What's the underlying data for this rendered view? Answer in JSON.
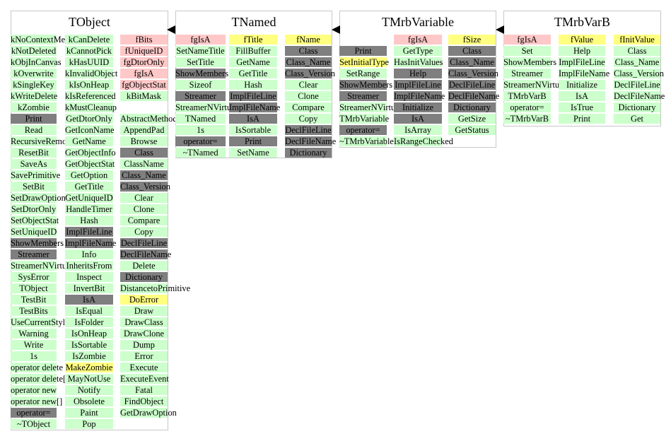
{
  "classes": [
    {
      "name": "TObject",
      "columns": [
        [
          [
            "kNoContextMenu",
            "green"
          ],
          [
            "kNotDeleted",
            "green"
          ],
          [
            "kObjInCanvas",
            "green"
          ],
          [
            "kOverwrite",
            "green"
          ],
          [
            "kSingleKey",
            "green"
          ],
          [
            "kWriteDelete",
            "green"
          ],
          [
            "kZombie",
            "green"
          ],
          [
            "Print",
            "gray"
          ],
          [
            "Read",
            "green"
          ],
          [
            "RecursiveRemove",
            "green"
          ],
          [
            "ResetBit",
            "green"
          ],
          [
            "SaveAs",
            "green"
          ],
          [
            "SavePrimitive",
            "green"
          ],
          [
            "SetBit",
            "green"
          ],
          [
            "SetDrawOption",
            "green"
          ],
          [
            "SetDtorOnly",
            "green"
          ],
          [
            "SetObjectStat",
            "green"
          ],
          [
            "SetUniqueID",
            "green"
          ],
          [
            "ShowMembers",
            "gray"
          ],
          [
            "Streamer",
            "gray"
          ],
          [
            "StreamerNVirtual",
            "green"
          ],
          [
            "SysError",
            "green"
          ],
          [
            "TObject",
            "green"
          ],
          [
            "TestBit",
            "green"
          ],
          [
            "TestBits",
            "green"
          ],
          [
            "UseCurrentStyle",
            "green"
          ],
          [
            "Warning",
            "green"
          ],
          [
            "Write",
            "green"
          ],
          [
            "1s",
            "green"
          ],
          [
            "operator delete",
            "green"
          ],
          [
            "operator delete[]",
            "green"
          ],
          [
            "operator new",
            "green"
          ],
          [
            "operator new[]",
            "green"
          ],
          [
            "operator=",
            "gray"
          ],
          [
            "~TObject",
            "green"
          ]
        ],
        [
          [
            "kCanDelete",
            "green"
          ],
          [
            "kCannotPick",
            "green"
          ],
          [
            "kHasUUID",
            "green"
          ],
          [
            "kInvalidObject",
            "green"
          ],
          [
            "kIsOnHeap",
            "green"
          ],
          [
            "kIsReferenced",
            "green"
          ],
          [
            "kMustCleanup",
            "green"
          ],
          [
            "GetDtorOnly",
            "green"
          ],
          [
            "GetIconName",
            "green"
          ],
          [
            "GetName",
            "green"
          ],
          [
            "GetObjectInfo",
            "green"
          ],
          [
            "GetObjectStat",
            "green"
          ],
          [
            "GetOption",
            "green"
          ],
          [
            "GetTitle",
            "green"
          ],
          [
            "GetUniqueID",
            "green"
          ],
          [
            "HandleTimer",
            "green"
          ],
          [
            "Hash",
            "green"
          ],
          [
            "ImplFileLine",
            "gray"
          ],
          [
            "ImplFileName",
            "gray"
          ],
          [
            "Info",
            "green"
          ],
          [
            "InheritsFrom",
            "green"
          ],
          [
            "Inspect",
            "green"
          ],
          [
            "InvertBit",
            "green"
          ],
          [
            "IsA",
            "gray"
          ],
          [
            "IsEqual",
            "green"
          ],
          [
            "IsFolder",
            "green"
          ],
          [
            "IsOnHeap",
            "green"
          ],
          [
            "IsSortable",
            "green"
          ],
          [
            "IsZombie",
            "green"
          ],
          [
            "MakeZombie",
            "yellow"
          ],
          [
            "MayNotUse",
            "green"
          ],
          [
            "Notify",
            "green"
          ],
          [
            "Obsolete",
            "green"
          ],
          [
            "Paint",
            "green"
          ],
          [
            "Pop",
            "green"
          ]
        ],
        [
          [
            "fBits",
            "pink"
          ],
          [
            "fUniqueID",
            "pink"
          ],
          [
            "fgDtorOnly",
            "pink"
          ],
          [
            "fgIsA",
            "pink"
          ],
          [
            "fgObjectStat",
            "pink"
          ],
          [
            "kBitMask",
            "green"
          ],
          [
            "",
            ""
          ],
          [
            "AbstractMethod",
            "green"
          ],
          [
            "AppendPad",
            "green"
          ],
          [
            "Browse",
            "green"
          ],
          [
            "Class",
            "gray"
          ],
          [
            "ClassName",
            "green"
          ],
          [
            "Class_Name",
            "gray"
          ],
          [
            "Class_Version",
            "gray"
          ],
          [
            "Clear",
            "green"
          ],
          [
            "Clone",
            "green"
          ],
          [
            "Compare",
            "green"
          ],
          [
            "Copy",
            "green"
          ],
          [
            "DeclFileLine",
            "gray"
          ],
          [
            "DeclFileName",
            "gray"
          ],
          [
            "Delete",
            "green"
          ],
          [
            "Dictionary",
            "gray"
          ],
          [
            "DistancetoPrimitive",
            "green"
          ],
          [
            "DoError",
            "yellow"
          ],
          [
            "Draw",
            "green"
          ],
          [
            "DrawClass",
            "green"
          ],
          [
            "DrawClone",
            "green"
          ],
          [
            "Dump",
            "green"
          ],
          [
            "Error",
            "green"
          ],
          [
            "Execute",
            "green"
          ],
          [
            "ExecuteEvent",
            "green"
          ],
          [
            "Fatal",
            "green"
          ],
          [
            "FindObject",
            "green"
          ],
          [
            "GetDrawOption",
            "green"
          ]
        ]
      ]
    },
    {
      "name": "TNamed",
      "columns": [
        [
          [
            "fgIsA",
            "pink"
          ],
          [
            "SetNameTitle",
            "green"
          ],
          [
            "SetTitle",
            "green"
          ],
          [
            "ShowMembers",
            "gray"
          ],
          [
            "Sizeof",
            "green"
          ],
          [
            "Streamer",
            "gray"
          ],
          [
            "StreamerNVirtual",
            "green"
          ],
          [
            "TNamed",
            "green"
          ],
          [
            "1s",
            "green"
          ],
          [
            "operator=",
            "gray"
          ],
          [
            "~TNamed",
            "green"
          ]
        ],
        [
          [
            "fTitle",
            "yellow"
          ],
          [
            "FillBuffer",
            "green"
          ],
          [
            "GetName",
            "green"
          ],
          [
            "GetTitle",
            "green"
          ],
          [
            "Hash",
            "green"
          ],
          [
            "ImplFileLine",
            "gray"
          ],
          [
            "ImplFileName",
            "gray"
          ],
          [
            "IsA",
            "gray"
          ],
          [
            "IsSortable",
            "green"
          ],
          [
            "Print",
            "gray"
          ],
          [
            "SetName",
            "green"
          ]
        ],
        [
          [
            "fName",
            "yellow"
          ],
          [
            "Class",
            "gray"
          ],
          [
            "Class_Name",
            "gray"
          ],
          [
            "Class_Version",
            "gray"
          ],
          [
            "Clear",
            "green"
          ],
          [
            "Clone",
            "green"
          ],
          [
            "Compare",
            "green"
          ],
          [
            "Copy",
            "green"
          ],
          [
            "DeclFileLine",
            "gray"
          ],
          [
            "DeclFileName",
            "gray"
          ],
          [
            "Dictionary",
            "gray"
          ]
        ]
      ]
    },
    {
      "name": "TMrbVariable",
      "columns": [
        [
          [
            "",
            ""
          ],
          [
            "Print",
            "gray"
          ],
          [
            "SetInitialType",
            "yellow"
          ],
          [
            "SetRange",
            "green"
          ],
          [
            "ShowMembers",
            "gray"
          ],
          [
            "Streamer",
            "gray"
          ],
          [
            "StreamerNVirtual",
            "green"
          ],
          [
            "TMrbVariable",
            "green"
          ],
          [
            "operator=",
            "gray"
          ],
          [
            "~TMrbVariable",
            "green"
          ]
        ],
        [
          [
            "fgIsA",
            "pink"
          ],
          [
            "GetType",
            "green"
          ],
          [
            "HasInitValues",
            "green"
          ],
          [
            "Help",
            "gray"
          ],
          [
            "ImplFileLine",
            "gray"
          ],
          [
            "ImplFileName",
            "gray"
          ],
          [
            "Initialize",
            "gray"
          ],
          [
            "IsA",
            "gray"
          ],
          [
            "IsArray",
            "green"
          ],
          [
            "IsRangeChecked",
            "green"
          ]
        ],
        [
          [
            "fSize",
            "yellow"
          ],
          [
            "Class",
            "gray"
          ],
          [
            "Class_Name",
            "gray"
          ],
          [
            "Class_Version",
            "gray"
          ],
          [
            "DeclFileLine",
            "gray"
          ],
          [
            "DeclFileName",
            "gray"
          ],
          [
            "Dictionary",
            "gray"
          ],
          [
            "GetSize",
            "green"
          ],
          [
            "GetStatus",
            "green"
          ]
        ]
      ]
    },
    {
      "name": "TMrbVarB",
      "columns": [
        [
          [
            "fgIsA",
            "pink"
          ],
          [
            "Set",
            "green"
          ],
          [
            "ShowMembers",
            "green"
          ],
          [
            "Streamer",
            "green"
          ],
          [
            "StreamerNVirtual",
            "green"
          ],
          [
            "TMrbVarB",
            "green"
          ],
          [
            "operator=",
            "green"
          ],
          [
            "~TMrbVarB",
            "green"
          ]
        ],
        [
          [
            "fValue",
            "yellow"
          ],
          [
            "Help",
            "green"
          ],
          [
            "ImplFileLine",
            "green"
          ],
          [
            "ImplFileName",
            "green"
          ],
          [
            "Initialize",
            "green"
          ],
          [
            "IsA",
            "green"
          ],
          [
            "IsTrue",
            "green"
          ],
          [
            "Print",
            "green"
          ]
        ],
        [
          [
            "fInitValue",
            "yellow"
          ],
          [
            "Class",
            "green"
          ],
          [
            "Class_Name",
            "green"
          ],
          [
            "Class_Version",
            "green"
          ],
          [
            "DeclFileLine",
            "green"
          ],
          [
            "DeclFileName",
            "green"
          ],
          [
            "Dictionary",
            "green"
          ],
          [
            "Get",
            "green"
          ]
        ]
      ]
    }
  ]
}
